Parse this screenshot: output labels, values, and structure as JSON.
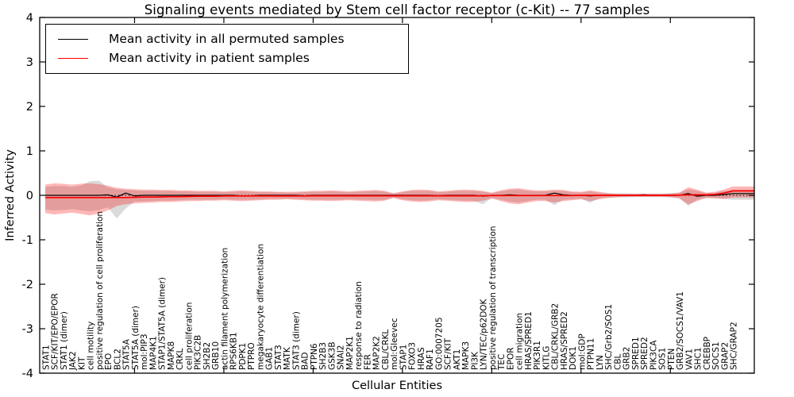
{
  "figure": {
    "title": "Signaling events mediated by Stem cell factor receptor (c-Kit) -- 77 samples",
    "xlabel": "Cellular Entities",
    "ylabel": "Inferred Activity",
    "legend": [
      {
        "label": "Mean activity in all permuted samples",
        "color": "#000000"
      },
      {
        "label": "Mean activity in patient samples",
        "color": "#ff0000"
      }
    ]
  },
  "chart_data": {
    "type": "line",
    "title": "Signaling events mediated by Stem cell factor receptor (c-Kit) -- 77 samples",
    "xlabel": "Cellular Entities",
    "ylabel": "Inferred Activity",
    "ylim": [
      -4,
      4
    ],
    "yticks": [
      4,
      3,
      2,
      1,
      0,
      -1,
      -2,
      -3,
      -4
    ],
    "grid": false,
    "legend_position": "upper left",
    "zero_line_style": "dotted",
    "categories": [
      "STAT1",
      "SCF/KIT/EPO/EPOR",
      "STAT1 (dimer)",
      "JAK2",
      "KIT",
      "cell motility",
      "positive regulation of cell proliferation",
      "EPO",
      "BCL2",
      "STAT5A",
      "STAT5A (dimer)",
      "mol:PIP3",
      "MAP4K1",
      "STAP1/STAT5A (dimer)",
      "MAPK8",
      "CRKL",
      "cell proliferation",
      "PIK3C2B",
      "SH2B2",
      "GRB10",
      "actin filament polymerization",
      "RPS6KB1",
      "PDPK1",
      "PTPRO",
      "megakaryocyte differentiation",
      "GAB1",
      "STAT3",
      "MATK",
      "STAT3 (dimer)",
      "BAD",
      "PTPN6",
      "SH2B3",
      "GSK3B",
      "SNAI2",
      "MAP2K1",
      "response to radiation",
      "FER",
      "MAP2K2",
      "CBL/CRKL",
      "mol:Gleevec",
      "STAP1",
      "FOXO3",
      "HRAS",
      "RAF1",
      "GO:0007205",
      "SCF/KIT",
      "AKT1",
      "MAPK3",
      "PI3K",
      "LYN/TEC/p62DOK",
      "positive regulation of transcription",
      "TEC",
      "EPOR",
      "cell migration",
      "HRAS/SPRED1",
      "PIK3R1",
      "KITLG",
      "CBL/CRKL/GRB2",
      "HRAS/SPRED2",
      "DOK1",
      "mol:GDP",
      "PTPN11",
      "LYN",
      "SHC/Grb2/SOS1",
      "CBL",
      "GRB2",
      "SPRED1",
      "SPRED2",
      "PIK3CA",
      "SOS1",
      "PTEN",
      "GRB2/SOCS1/VAV1",
      "VAV1",
      "SHC1",
      "CREBBP",
      "SOCS1",
      "GRAP2",
      "SHC/GRAP2"
    ],
    "series": [
      {
        "name": "Mean activity in all permuted samples",
        "color": "#000000",
        "values": [
          0,
          0,
          0,
          0,
          0,
          0,
          0,
          0.01,
          -0.04,
          0.05,
          -0.015,
          0,
          0,
          0,
          0,
          0,
          0,
          0,
          0,
          0,
          0,
          0,
          -0.015,
          -0.01,
          0,
          0,
          0,
          0,
          0,
          -0.01,
          0,
          0,
          0,
          0,
          0,
          0,
          0,
          0,
          0,
          0,
          0,
          0,
          0,
          0,
          -0.01,
          0,
          0,
          0,
          0,
          -0.02,
          0,
          0,
          0.01,
          0,
          0,
          0,
          0,
          0.05,
          0.01,
          0,
          0,
          -0.015,
          0,
          0,
          0,
          0,
          0,
          0.01,
          0,
          0,
          0,
          0,
          0.04,
          -0.02,
          0,
          0,
          0.02,
          0.04
        ]
      },
      {
        "name": "Mean activity in patient samples",
        "color": "#ff0000",
        "values": [
          -0.05,
          -0.05,
          -0.05,
          -0.05,
          -0.05,
          -0.05,
          -0.05,
          -0.05,
          -0.05,
          -0.05,
          -0.045,
          -0.04,
          -0.04,
          -0.035,
          -0.03,
          -0.03,
          -0.025,
          -0.02,
          -0.02,
          -0.02,
          -0.015,
          -0.015,
          -0.015,
          -0.015,
          -0.015,
          -0.015,
          -0.015,
          -0.015,
          -0.015,
          -0.015,
          -0.01,
          -0.01,
          -0.01,
          -0.01,
          -0.01,
          -0.01,
          -0.01,
          -0.01,
          -0.01,
          -0.01,
          -0.01,
          -0.01,
          -0.01,
          -0.01,
          -0.01,
          -0.01,
          -0.01,
          -0.01,
          -0.01,
          -0.01,
          -0.005,
          -0.005,
          -0.005,
          -0.005,
          -0.005,
          -0.005,
          -0.005,
          -0.005,
          -0.005,
          -0.005,
          0,
          0,
          0,
          0,
          0,
          0,
          0,
          0,
          0,
          0,
          0,
          0.005,
          0.01,
          0.01,
          0.01,
          0.02,
          0.05,
          0.1
        ]
      }
    ],
    "bands": [
      {
        "name": "permuted samples activity range",
        "color": "#777777",
        "opacity": 0.27,
        "upper": [
          0.19,
          0.21,
          0.21,
          0.19,
          0.22,
          0.32,
          0.33,
          0.18,
          0.14,
          0.12,
          0.11,
          0.1,
          0.1,
          0.1,
          0.1,
          0.09,
          0.09,
          0.08,
          0.08,
          0.08,
          0.07,
          0.08,
          0.09,
          0.08,
          0.07,
          0.07,
          0.07,
          0.06,
          0.06,
          0.07,
          0.08,
          0.08,
          0.09,
          0.08,
          0.07,
          0.08,
          0.09,
          0.1,
          0.08,
          0.04,
          0.07,
          0.1,
          0.1,
          0.1,
          0.07,
          0.08,
          0.1,
          0.1,
          0.1,
          0.08,
          0.05,
          0.09,
          0.12,
          0.13,
          0.1,
          0.09,
          0.09,
          0.1,
          0.1,
          0.07,
          0.06,
          0.09,
          0.06,
          0.05,
          0.05,
          0.05,
          0.04,
          0.04,
          0.04,
          0.04,
          0.05,
          0.06,
          0.14,
          0.1,
          0.05,
          0.06,
          0.1,
          0.12
        ],
        "lower": [
          -0.32,
          -0.34,
          -0.33,
          -0.31,
          -0.34,
          -0.36,
          -0.33,
          -0.27,
          -0.52,
          -0.3,
          -0.14,
          -0.14,
          -0.13,
          -0.12,
          -0.12,
          -0.11,
          -0.1,
          -0.1,
          -0.1,
          -0.1,
          -0.09,
          -0.1,
          -0.1,
          -0.1,
          -0.09,
          -0.08,
          -0.08,
          -0.07,
          -0.08,
          -0.09,
          -0.1,
          -0.1,
          -0.1,
          -0.1,
          -0.09,
          -0.1,
          -0.1,
          -0.11,
          -0.1,
          -0.05,
          -0.09,
          -0.11,
          -0.12,
          -0.11,
          -0.09,
          -0.1,
          -0.11,
          -0.12,
          -0.12,
          -0.2,
          -0.06,
          -0.1,
          -0.14,
          -0.16,
          -0.13,
          -0.1,
          -0.1,
          -0.22,
          -0.1,
          -0.09,
          -0.07,
          -0.17,
          -0.07,
          -0.05,
          -0.05,
          -0.05,
          -0.04,
          -0.04,
          -0.04,
          -0.04,
          -0.05,
          -0.06,
          -0.24,
          -0.1,
          -0.05,
          -0.06,
          -0.08,
          -0.1
        ]
      },
      {
        "name": "patient samples activity range",
        "color": "#ff0000",
        "opacity": 0.28,
        "upper": [
          0.24,
          0.27,
          0.26,
          0.24,
          0.26,
          0.27,
          0.25,
          0.22,
          0.17,
          0.15,
          0.14,
          0.13,
          0.13,
          0.12,
          0.12,
          0.11,
          0.11,
          0.1,
          0.1,
          0.1,
          0.09,
          0.1,
          0.11,
          0.1,
          0.09,
          0.09,
          0.08,
          0.08,
          0.08,
          0.09,
          0.1,
          0.1,
          0.11,
          0.1,
          0.09,
          0.1,
          0.11,
          0.12,
          0.1,
          0.05,
          0.09,
          0.12,
          0.13,
          0.12,
          0.09,
          0.1,
          0.12,
          0.13,
          0.12,
          0.1,
          0.06,
          0.11,
          0.15,
          0.16,
          0.13,
          0.11,
          0.11,
          0.13,
          0.12,
          0.09,
          0.08,
          0.11,
          0.08,
          0.05,
          0.03,
          0.03,
          0.03,
          0.03,
          0.03,
          0.03,
          0.04,
          0.06,
          0.18,
          0.13,
          0.06,
          0.08,
          0.13,
          0.2
        ],
        "lower": [
          -0.4,
          -0.43,
          -0.41,
          -0.39,
          -0.42,
          -0.45,
          -0.41,
          -0.34,
          -0.24,
          -0.2,
          -0.18,
          -0.17,
          -0.16,
          -0.15,
          -0.15,
          -0.14,
          -0.13,
          -0.13,
          -0.12,
          -0.12,
          -0.11,
          -0.12,
          -0.13,
          -0.12,
          -0.11,
          -0.1,
          -0.1,
          -0.09,
          -0.1,
          -0.11,
          -0.12,
          -0.12,
          -0.13,
          -0.12,
          -0.11,
          -0.12,
          -0.13,
          -0.14,
          -0.12,
          -0.06,
          -0.11,
          -0.14,
          -0.15,
          -0.14,
          -0.11,
          -0.12,
          -0.14,
          -0.15,
          -0.15,
          -0.12,
          -0.07,
          -0.13,
          -0.18,
          -0.2,
          -0.16,
          -0.13,
          -0.13,
          -0.16,
          -0.13,
          -0.11,
          -0.09,
          -0.13,
          -0.09,
          -0.06,
          -0.04,
          -0.03,
          -0.03,
          -0.03,
          -0.03,
          -0.03,
          -0.04,
          -0.07,
          -0.2,
          -0.13,
          -0.06,
          -0.07,
          -0.08,
          -0.05
        ]
      }
    ]
  }
}
